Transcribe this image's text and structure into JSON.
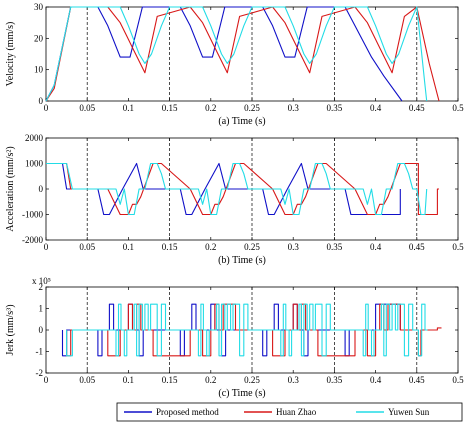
{
  "colors": {
    "proposed": "#1010c8",
    "huan_zhao": "#d81818",
    "yuwen_sun": "#22dce6"
  },
  "legend": {
    "position": "bottom",
    "entries": [
      "Proposed method",
      "Huan Zhao",
      "Yuwen Sun"
    ]
  },
  "chart_data": [
    {
      "type": "line",
      "caption": "(a) Time (s)",
      "ylabel": "Velocity (mm/s)",
      "xlim": [
        0,
        0.5
      ],
      "ylim": [
        0,
        30
      ],
      "xticks": [
        "0",
        "0.05",
        "0.1",
        "0.15",
        "0.2",
        "0.25",
        "0.3",
        "0.35",
        "0.4",
        "0.45",
        "0.5"
      ],
      "yticks": [
        "0",
        "10",
        "20",
        "30"
      ],
      "dashed_gridlines_x": [
        0.05,
        0.15,
        0.25,
        0.35,
        0.45
      ],
      "series": [
        {
          "name": "Proposed method",
          "x": [
            0,
            0.01,
            0.03,
            0.063,
            0.075,
            0.09,
            0.102,
            0.117,
            0.163,
            0.175,
            0.19,
            0.202,
            0.217,
            0.263,
            0.275,
            0.29,
            0.302,
            0.317,
            0.363,
            0.375,
            0.395,
            0.41,
            0.432
          ],
          "y": [
            0,
            5,
            30,
            30,
            24,
            14,
            14,
            30,
            30,
            24,
            14,
            14,
            30,
            30,
            24,
            14,
            14,
            30,
            30,
            24,
            14,
            8,
            0
          ]
        },
        {
          "name": "Huan Zhao",
          "x": [
            0,
            0.01,
            0.03,
            0.075,
            0.09,
            0.105,
            0.12,
            0.135,
            0.175,
            0.19,
            0.205,
            0.22,
            0.235,
            0.275,
            0.29,
            0.305,
            0.32,
            0.335,
            0.375,
            0.39,
            0.405,
            0.42,
            0.435,
            0.45,
            0.465,
            0.477
          ],
          "y": [
            0,
            4,
            30,
            30,
            25,
            17,
            9,
            27,
            30,
            25,
            17,
            9,
            27,
            30,
            25,
            17,
            9,
            27,
            30,
            25,
            17,
            9,
            27,
            30,
            12,
            0
          ]
        },
        {
          "name": "Yuwen Sun",
          "x": [
            0,
            0.01,
            0.03,
            0.09,
            0.1,
            0.113,
            0.12,
            0.128,
            0.14,
            0.15,
            0.19,
            0.2,
            0.213,
            0.22,
            0.228,
            0.24,
            0.25,
            0.29,
            0.3,
            0.313,
            0.32,
            0.328,
            0.34,
            0.35,
            0.39,
            0.4,
            0.413,
            0.42,
            0.428,
            0.44,
            0.45,
            0.46,
            0.462
          ],
          "y": [
            0,
            5,
            30,
            30,
            24,
            15,
            12,
            15,
            24,
            30,
            30,
            24,
            15,
            12,
            15,
            24,
            30,
            30,
            24,
            15,
            12,
            15,
            24,
            30,
            30,
            24,
            15,
            12,
            15,
            24,
            30,
            5,
            0
          ]
        }
      ]
    },
    {
      "type": "line",
      "caption": "(b)  Time (s)",
      "ylabel": "Acceleration (mm/s²)",
      "xlim": [
        0,
        0.5
      ],
      "ylim": [
        -2000,
        2000
      ],
      "xticks": [
        "0",
        "0.05",
        "0.1",
        "0.15",
        "0.2",
        "0.25",
        "0.3",
        "0.35",
        "0.4",
        "0.45",
        "0.5"
      ],
      "yticks": [
        "-2000",
        "-1000",
        "0",
        "1000",
        "2000"
      ],
      "dashed_gridlines_x": [
        0.05,
        0.15,
        0.25,
        0.35,
        0.45
      ],
      "series": [
        {
          "name": "Proposed method",
          "x": [
            0,
            0.02,
            0.025,
            0.03,
            0.063,
            0.07,
            0.077,
            0.093,
            0.11,
            0.118,
            0.163,
            0.17,
            0.177,
            0.193,
            0.21,
            0.218,
            0.263,
            0.27,
            0.277,
            0.293,
            0.31,
            0.318,
            0.363,
            0.37,
            0.377,
            0.4,
            0.4,
            0.43,
            0.43
          ],
          "y": [
            1000,
            1000,
            0,
            0,
            0,
            -1000,
            -1000,
            0,
            1000,
            0,
            0,
            -1000,
            -1000,
            0,
            1000,
            0,
            0,
            -1000,
            -1000,
            0,
            1000,
            0,
            0,
            -1000,
            -1000,
            -1000,
            -1000,
            -1000,
            0
          ]
        },
        {
          "name": "Huan Zhao",
          "x": [
            0,
            0.025,
            0.03,
            0.075,
            0.09,
            0.1,
            0.105,
            0.11,
            0.115,
            0.13,
            0.14,
            0.175,
            0.19,
            0.2,
            0.205,
            0.21,
            0.215,
            0.23,
            0.24,
            0.275,
            0.29,
            0.3,
            0.305,
            0.31,
            0.315,
            0.33,
            0.34,
            0.375,
            0.39,
            0.4,
            0.405,
            0.41,
            0.415,
            0.43,
            0.44,
            0.452,
            0.452,
            0.475,
            0.475,
            0.477
          ],
          "y": [
            1000,
            1000,
            0,
            0,
            -1000,
            -1000,
            -600,
            -600,
            -300,
            1000,
            1000,
            0,
            -1000,
            -1000,
            -600,
            -600,
            -300,
            1000,
            1000,
            0,
            -1000,
            -1000,
            -600,
            -600,
            -300,
            1000,
            1000,
            0,
            -1000,
            -1000,
            -600,
            -600,
            -300,
            1000,
            1000,
            1000,
            -1000,
            -1000,
            0,
            0
          ]
        },
        {
          "name": "Yuwen Sun",
          "x": [
            0,
            0.025,
            0.032,
            0.085,
            0.09,
            0.095,
            0.1,
            0.107,
            0.113,
            0.12,
            0.127,
            0.135,
            0.14,
            0.145,
            0.15,
            0.185,
            0.19,
            0.195,
            0.2,
            0.207,
            0.213,
            0.22,
            0.227,
            0.235,
            0.24,
            0.245,
            0.25,
            0.285,
            0.29,
            0.295,
            0.3,
            0.307,
            0.313,
            0.32,
            0.327,
            0.335,
            0.34,
            0.345,
            0.35,
            0.385,
            0.39,
            0.395,
            0.4,
            0.407,
            0.413,
            0.42,
            0.427,
            0.435,
            0.44,
            0.445,
            0.45,
            0.455,
            0.46,
            0.462
          ],
          "y": [
            1000,
            1000,
            0,
            0,
            -600,
            0,
            -1000,
            -1000,
            0,
            0,
            1000,
            1000,
            600,
            0,
            0,
            0,
            -600,
            0,
            -1000,
            -1000,
            0,
            0,
            1000,
            1000,
            600,
            0,
            0,
            0,
            -600,
            0,
            -1000,
            -1000,
            0,
            0,
            1000,
            1000,
            600,
            0,
            0,
            0,
            -600,
            0,
            -1000,
            -1000,
            0,
            0,
            1000,
            1000,
            600,
            0,
            0,
            -1000,
            -1000,
            0
          ]
        }
      ]
    },
    {
      "type": "line",
      "caption": "(c) Time (s)",
      "ylabel": "Jerk (mm/s³)",
      "y_multiplier": "x 10⁵",
      "xlim": [
        0,
        0.5
      ],
      "ylim": [
        -2,
        2
      ],
      "xticks": [
        "0",
        "0.05",
        "0.1",
        "0.15",
        "0.2",
        "0.25",
        "0.3",
        "0.35",
        "0.4",
        "0.45",
        "0.5"
      ],
      "yticks": [
        "-2",
        "-1",
        "0",
        "1",
        "2"
      ],
      "dashed_gridlines_x": [
        0.05,
        0.15,
        0.25,
        0.35,
        0.45
      ],
      "series": [
        {
          "name": "Proposed method",
          "x": [
            0.02,
            0.02,
            0.025,
            0.025,
            0.063,
            0.063,
            0.068,
            0.068,
            0.077,
            0.077,
            0.082,
            0.082,
            0.1,
            0.1,
            0.105,
            0.105,
            0.113,
            0.113,
            0.118,
            0.118,
            0.163,
            0.163,
            0.168,
            0.168,
            0.177,
            0.177,
            0.182,
            0.182,
            0.2,
            0.2,
            0.205,
            0.205,
            0.213,
            0.213,
            0.218,
            0.218,
            0.263,
            0.263,
            0.268,
            0.268,
            0.277,
            0.277,
            0.282,
            0.282,
            0.3,
            0.3,
            0.305,
            0.305,
            0.313,
            0.313,
            0.318,
            0.318,
            0.363,
            0.363,
            0.368,
            0.368,
            0.4,
            0.4,
            0.43,
            0.43
          ],
          "y": [
            0,
            -1.2,
            -1.2,
            0,
            0,
            -1.2,
            -1.2,
            0,
            0,
            1.2,
            1.2,
            0,
            0,
            1.2,
            1.2,
            0,
            0,
            -1.2,
            -1.2,
            0,
            0,
            -1.2,
            -1.2,
            0,
            0,
            1.2,
            1.2,
            0,
            0,
            1.2,
            1.2,
            0,
            0,
            -1.2,
            -1.2,
            0,
            0,
            -1.2,
            -1.2,
            0,
            0,
            1.2,
            1.2,
            0,
            0,
            1.2,
            1.2,
            0,
            0,
            -1.2,
            -1.2,
            0,
            0,
            -1.2,
            -1.2,
            0,
            0,
            1.2,
            1.2,
            0
          ]
        },
        {
          "name": "Huan Zhao",
          "x": [
            0.025,
            0.025,
            0.03,
            0.03,
            0.075,
            0.075,
            0.09,
            0.09,
            0.1,
            0.1,
            0.105,
            0.105,
            0.11,
            0.11,
            0.115,
            0.115,
            0.13,
            0.13,
            0.175,
            0.175,
            0.19,
            0.19,
            0.2,
            0.2,
            0.205,
            0.205,
            0.21,
            0.21,
            0.215,
            0.215,
            0.23,
            0.23,
            0.275,
            0.275,
            0.29,
            0.29,
            0.3,
            0.3,
            0.305,
            0.305,
            0.31,
            0.31,
            0.315,
            0.315,
            0.33,
            0.33,
            0.375,
            0.375,
            0.39,
            0.39,
            0.4,
            0.4,
            0.405,
            0.405,
            0.41,
            0.41,
            0.415,
            0.415,
            0.43,
            0.43,
            0.452,
            0.452,
            0.455,
            0.455,
            0.475,
            0.475,
            0.48
          ],
          "y": [
            0,
            -1.2,
            -1.2,
            0,
            0,
            -1.2,
            -1.2,
            0,
            0,
            1.2,
            1.2,
            0,
            0,
            1.2,
            1.2,
            0,
            0,
            -1.2,
            -1.2,
            0,
            0,
            -1.2,
            -1.2,
            0,
            0,
            1.2,
            1.2,
            0,
            0,
            1.2,
            1.2,
            0,
            0,
            -1.2,
            -1.2,
            0,
            0,
            1.2,
            1.2,
            0,
            0,
            1.2,
            1.2,
            0,
            0,
            -1.2,
            -1.2,
            0,
            0,
            -1.2,
            -1.2,
            0,
            0,
            1.2,
            1.2,
            0,
            0,
            1.2,
            1.2,
            0,
            0,
            -1.2,
            -1.2,
            0,
            0,
            0.1,
            0.1
          ]
        },
        {
          "name": "Yuwen Sun",
          "x": [
            0.025,
            0.025,
            0.032,
            0.032,
            0.085,
            0.085,
            0.088,
            0.088,
            0.091,
            0.091,
            0.095,
            0.095,
            0.098,
            0.098,
            0.107,
            0.107,
            0.11,
            0.11,
            0.113,
            0.113,
            0.117,
            0.117,
            0.12,
            0.12,
            0.124,
            0.124,
            0.127,
            0.127,
            0.135,
            0.135,
            0.14,
            0.14,
            0.145,
            0.145,
            0.185,
            0.185,
            0.188,
            0.188,
            0.191,
            0.191,
            0.195,
            0.195,
            0.198,
            0.198,
            0.207,
            0.207,
            0.21,
            0.21,
            0.213,
            0.213,
            0.217,
            0.217,
            0.22,
            0.22,
            0.224,
            0.224,
            0.227,
            0.227,
            0.235,
            0.235,
            0.24,
            0.24,
            0.245,
            0.245,
            0.285,
            0.285,
            0.288,
            0.288,
            0.291,
            0.291,
            0.295,
            0.295,
            0.298,
            0.298,
            0.307,
            0.307,
            0.31,
            0.31,
            0.313,
            0.313,
            0.317,
            0.317,
            0.32,
            0.32,
            0.324,
            0.324,
            0.327,
            0.327,
            0.335,
            0.335,
            0.34,
            0.34,
            0.345,
            0.345,
            0.385,
            0.385,
            0.388,
            0.388,
            0.391,
            0.391,
            0.395,
            0.395,
            0.398,
            0.398,
            0.407,
            0.407,
            0.41,
            0.41,
            0.413,
            0.413,
            0.417,
            0.417,
            0.42,
            0.42,
            0.424,
            0.424,
            0.427,
            0.427,
            0.435,
            0.435,
            0.44,
            0.44,
            0.445,
            0.445,
            0.452,
            0.452,
            0.456,
            0.456,
            0.46,
            0.46,
            0.463
          ],
          "y": [
            0,
            -1.2,
            -1.2,
            0,
            0,
            -1.2,
            -1.2,
            1.2,
            1.2,
            0,
            0,
            -1.2,
            -1.2,
            0,
            0,
            1.2,
            1.2,
            -1.2,
            -1.2,
            1.2,
            1.2,
            0,
            0,
            1.2,
            1.2,
            0,
            0,
            1.2,
            1.2,
            -1.2,
            -1.2,
            1.2,
            1.2,
            0,
            0,
            -1.2,
            -1.2,
            1.2,
            1.2,
            0,
            0,
            -1.2,
            -1.2,
            0,
            0,
            1.2,
            1.2,
            -1.2,
            -1.2,
            1.2,
            1.2,
            0,
            0,
            1.2,
            1.2,
            0,
            0,
            1.2,
            1.2,
            -1.2,
            -1.2,
            1.2,
            1.2,
            0,
            0,
            -1.2,
            -1.2,
            1.2,
            1.2,
            0,
            0,
            -1.2,
            -1.2,
            0,
            0,
            1.2,
            1.2,
            -1.2,
            -1.2,
            1.2,
            1.2,
            0,
            0,
            1.2,
            1.2,
            0,
            0,
            1.2,
            1.2,
            -1.2,
            -1.2,
            1.2,
            1.2,
            0,
            0,
            -1.2,
            -1.2,
            1.2,
            1.2,
            0,
            0,
            -1.2,
            -1.2,
            0,
            0,
            1.2,
            1.2,
            -1.2,
            -1.2,
            1.2,
            1.2,
            0,
            0,
            1.2,
            1.2,
            0,
            0,
            1.2,
            1.2,
            -1.2,
            -1.2,
            1.2,
            1.2,
            0,
            0,
            -1.2,
            -1.2,
            1.2,
            1.2,
            0,
            0
          ]
        }
      ]
    }
  ]
}
